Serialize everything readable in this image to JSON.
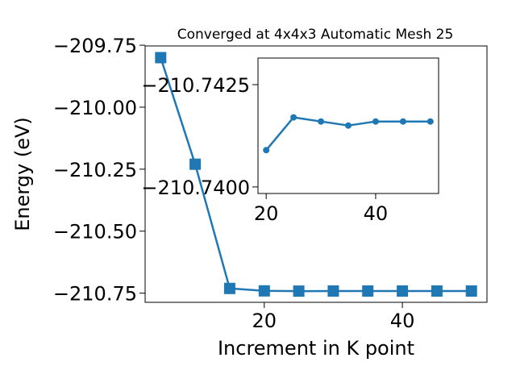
{
  "chart_data": [
    {
      "type": "line",
      "title": "Converged at 4x4x3 Automatic Mesh 25",
      "xlabel": "Increment in K point",
      "ylabel": "Energy (eV)",
      "x": [
        5,
        10,
        15,
        20,
        25,
        30,
        35,
        40,
        45,
        50
      ],
      "series": [
        {
          "values": [
            -209.8,
            -210.23,
            -210.731,
            -210.7409,
            -210.7417,
            -210.7416,
            -210.7415,
            -210.7416,
            -210.7416,
            -210.7416
          ],
          "color": "#1f77b4",
          "marker": "square"
        }
      ],
      "xlim": [
        2.75,
        52.25
      ],
      "ylim": [
        -210.787,
        -209.753
      ],
      "xticks": [
        20,
        40
      ],
      "xtick_labels": [
        "20",
        "40"
      ],
      "yticks": [
        -209.75,
        -210.0,
        -210.25,
        -210.5,
        -210.75
      ],
      "ytick_labels": [
        "−209.75",
        "−210.00",
        "−210.25",
        "−210.50",
        "−210.75"
      ],
      "grid": false
    },
    {
      "type": "line",
      "role": "inset",
      "x": [
        20,
        25,
        30,
        35,
        40,
        45,
        50
      ],
      "series": [
        {
          "values": [
            -210.7409,
            -210.7417,
            -210.7416,
            -210.7415,
            -210.7416,
            -210.7416,
            -210.7416
          ],
          "color": "#1f77b4",
          "marker": "circle"
        }
      ],
      "xlim": [
        18.5,
        51.5
      ],
      "ylim": [
        -210.73984,
        -210.74315
      ],
      "xticks": [
        20,
        40
      ],
      "xtick_labels": [
        "20",
        "40"
      ],
      "yticks": [
        -210.7425,
        -210.74
      ],
      "ytick_labels": [
        "−210.7425",
        "−210.7400"
      ],
      "grid": false
    }
  ]
}
